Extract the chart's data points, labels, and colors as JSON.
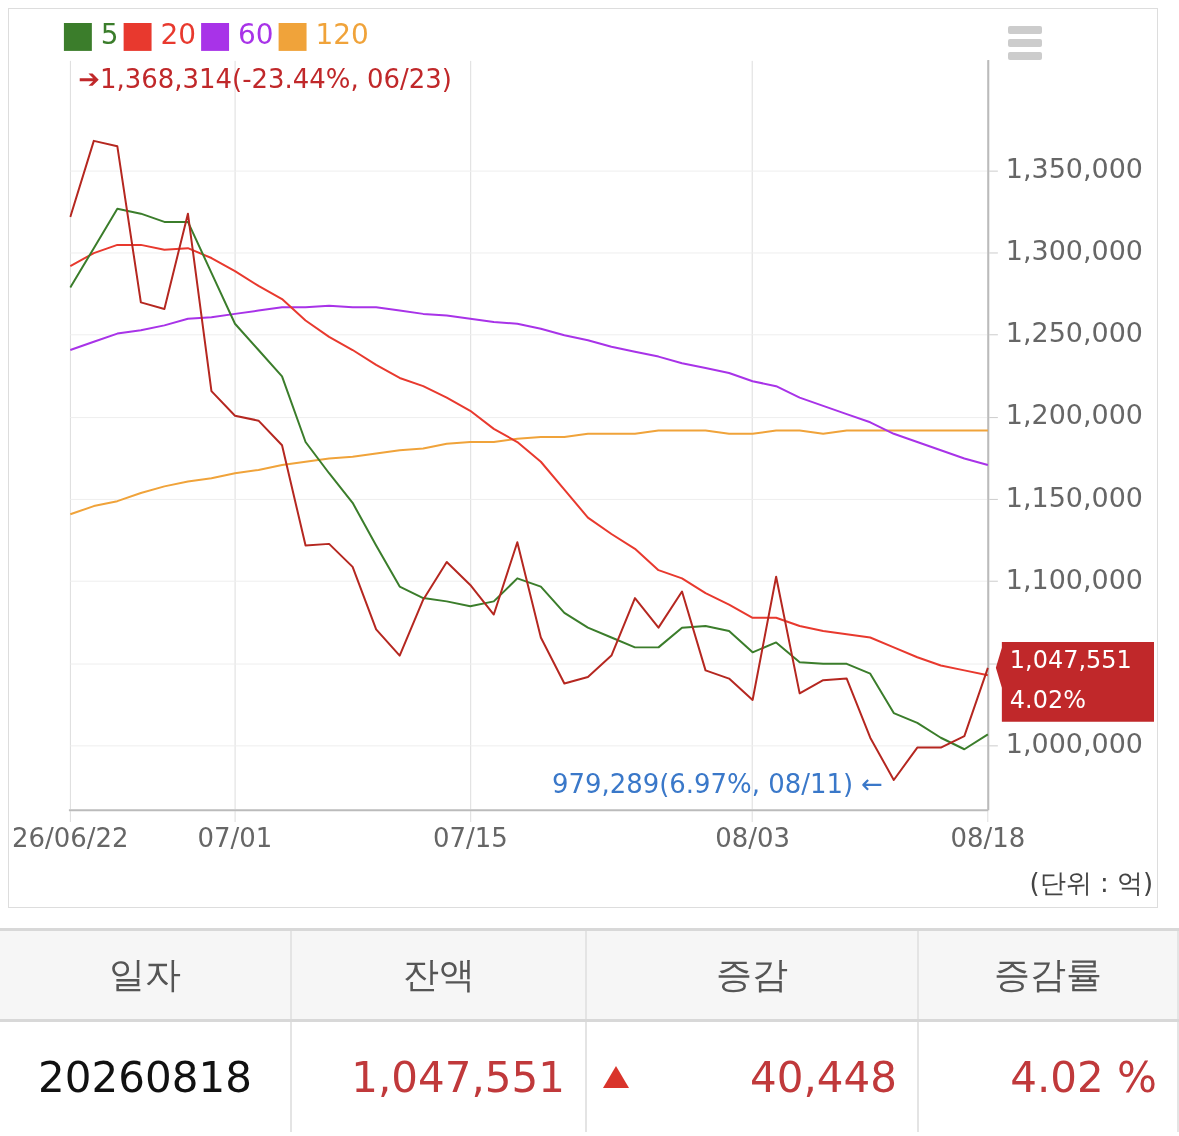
{
  "chart_data": [
    {
      "type": "line",
      "categories": [
        "26/06/22",
        null,
        null,
        null,
        null,
        null,
        null,
        "07/01",
        null,
        null,
        null,
        null,
        null,
        null,
        null,
        null,
        null,
        "07/15",
        null,
        null,
        null,
        null,
        null,
        null,
        null,
        null,
        null,
        null,
        null,
        "08/03",
        null,
        null,
        null,
        null,
        null,
        null,
        null,
        null,
        null,
        "08/18"
      ],
      "series": [
        {
          "color": "#b52720",
          "values": [
            1322000,
            1368314,
            1365000,
            1270000,
            1266000,
            1324000,
            1216000,
            1201000,
            1198000,
            1183000,
            1122000,
            1123000,
            1109000,
            1071000,
            1055000,
            1089000,
            1112000,
            1098000,
            1080000,
            1124000,
            1066000,
            1038000,
            1042000,
            1055000,
            1090000,
            1072000,
            1094000,
            1046000,
            1041000,
            1028000,
            1103000,
            1032000,
            1040000,
            1041000,
            1005000,
            979289,
            999000,
            999000,
            1006000,
            1047551
          ]
        },
        {
          "name": "5",
          "color": "#3b7d2b",
          "values": [
            1279000,
            1303000,
            1327000,
            1324000,
            1319000,
            1319000,
            1288000,
            1257000,
            1241000,
            1225000,
            1185000,
            1166000,
            1148000,
            1122000,
            1097000,
            1090000,
            1088000,
            1085000,
            1088000,
            1102000,
            1097000,
            1081000,
            1072000,
            1066000,
            1060000,
            1060000,
            1072000,
            1073000,
            1070000,
            1057000,
            1063000,
            1051000,
            1050000,
            1050000,
            1044000,
            1020000,
            1014000,
            1005000,
            998000,
            1007000
          ]
        },
        {
          "name": "20",
          "color": "#e8392e",
          "values": [
            1292000,
            1300000,
            1305000,
            1305000,
            1302000,
            1303000,
            1297000,
            1289000,
            1280000,
            1272000,
            1259000,
            1249000,
            1241000,
            1232000,
            1224000,
            1219000,
            1212000,
            1204000,
            1193000,
            1185000,
            1173000,
            1156000,
            1139000,
            1129000,
            1120000,
            1107000,
            1102000,
            1093000,
            1086000,
            1078000,
            1078000,
            1073000,
            1070000,
            1068000,
            1066000,
            1060000,
            1054000,
            1049000,
            1046000,
            1043000
          ]
        },
        {
          "name": "60",
          "color": "#a833e8",
          "values": [
            1241000,
            1246000,
            1251000,
            1253000,
            1256000,
            1260000,
            1261000,
            1263000,
            1265000,
            1267000,
            1267000,
            1268000,
            1267000,
            1267000,
            1265000,
            1263000,
            1262000,
            1260000,
            1258000,
            1257000,
            1254000,
            1250000,
            1247000,
            1243000,
            1240000,
            1237000,
            1233000,
            1230000,
            1227000,
            1222000,
            1219000,
            1212000,
            1207000,
            1202000,
            1197000,
            1190000,
            1185000,
            1180000,
            1175000,
            1171000
          ]
        },
        {
          "name": "120",
          "color": "#f0a33a",
          "values": [
            1141000,
            1146000,
            1149000,
            1154000,
            1158000,
            1161000,
            1163000,
            1166000,
            1168000,
            1171000,
            1173000,
            1175000,
            1176000,
            1178000,
            1180000,
            1181000,
            1184000,
            1185000,
            1185000,
            1187000,
            1188000,
            1188000,
            1190000,
            1190000,
            1190000,
            1192000,
            1192000,
            1192000,
            1190000,
            1190000,
            1192000,
            1192000,
            1190000,
            1192000,
            1192000,
            1192000,
            1192000,
            1192000,
            1192000,
            1192000
          ]
        }
      ],
      "ylim": [
        961000,
        1417000
      ],
      "yticks": [
        {
          "value": 1000000,
          "label": "1,000,000"
        },
        {
          "value": 1050000,
          "label": null
        },
        {
          "value": 1100000,
          "label": "1,100,000"
        },
        {
          "value": 1150000,
          "label": "1,150,000"
        },
        {
          "value": 1200000,
          "label": "1,200,000"
        },
        {
          "value": 1250000,
          "label": "1,250,000"
        },
        {
          "value": 1300000,
          "label": "1,300,000"
        },
        {
          "value": 1350000,
          "label": "1,350,000"
        }
      ],
      "grid": true,
      "legend": "top left",
      "marker": "none",
      "annotations": [
        "➔1,368,314(-23.44%, 06/23)",
        "979,289(6.97%, 08/11) ←",
        {
          "text": "1,047,551 4.02%",
          "x": "08/18",
          "y": 1047551
        },
        "(단위 : 억)"
      ]
    },
    {
      "type": "other",
      "categories": [
        "일자",
        "잔액",
        "증감",
        "증감률"
      ],
      "annotations": [
        "20260818",
        "1,047,551",
        "40,448",
        "4.02 %"
      ]
    }
  ]
}
